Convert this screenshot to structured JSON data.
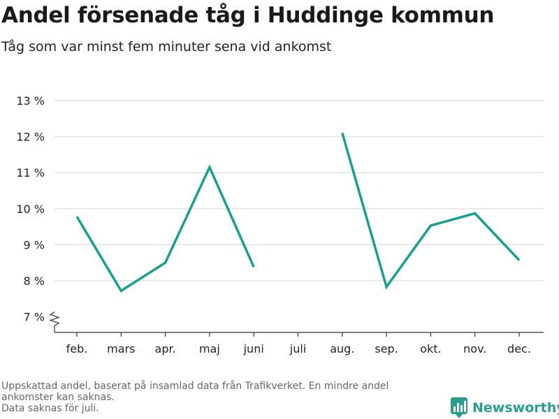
{
  "title": "Andel försenade tåg i Huddinge kommun",
  "subtitle": "Tåg som var minst fem minuter sena vid ankomst",
  "footnote": {
    "line1": "Uppskattad andel, baserat på insamlad data från Trafikverket. En mindre andel",
    "line2": "ankomster kan saknas.",
    "line3": "Data saknas för juli."
  },
  "brand": {
    "name": "Newsworthy",
    "icon": "newsworthy-logo-icon",
    "color": "#2a9d8f"
  },
  "chart_data": {
    "type": "line",
    "title": "Andel försenade tåg i Huddinge kommun",
    "subtitle": "Tåg som var minst fem minuter sena vid ankomst",
    "categories": [
      "feb.",
      "mars",
      "apr.",
      "maj",
      "juni",
      "juli",
      "aug.",
      "sep.",
      "okt.",
      "nov.",
      "dec."
    ],
    "series": [
      {
        "values": [
          9.78,
          7.72,
          8.5,
          11.15,
          8.38,
          null,
          12.1,
          7.83,
          9.53,
          9.87,
          8.57
        ],
        "color": "#1a9e8f"
      }
    ],
    "yticks": [
      7,
      8,
      9,
      10,
      11,
      12,
      13
    ],
    "ytick_labels": [
      "7 %",
      "8 %",
      "9 %",
      "10 %",
      "11 %",
      "12 %",
      "13 %"
    ],
    "ylim": [
      6.5,
      13
    ],
    "axis_break": true,
    "grid": true,
    "missing": [
      "juli"
    ]
  }
}
